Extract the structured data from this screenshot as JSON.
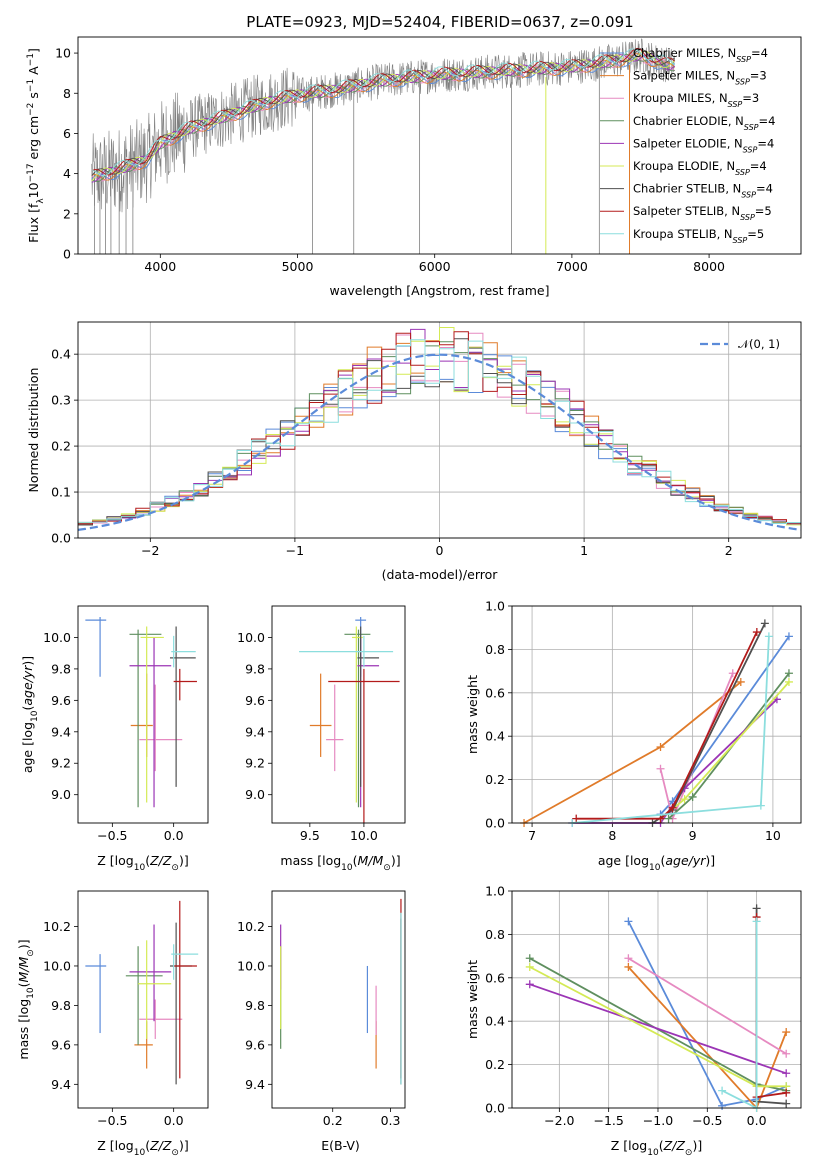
{
  "page_title": "PLATE=0923, MJD=52404, FIBERID=0637, z=0.091",
  "colors": {
    "Chabrier MILES": "#5b8bd9",
    "Salpeter MILES": "#e07b2a",
    "Kroupa MILES": "#e68ac1",
    "Chabrier ELODIE": "#5f8f5f",
    "Salpeter ELODIE": "#9b35b5",
    "Kroupa ELODIE": "#d4ea55",
    "Chabrier STELIB": "#505050",
    "Salpeter STELIB": "#b31b1b",
    "Kroupa STELIB": "#8cdede",
    "gaussian": "#5b8bd9",
    "data": "#808080"
  },
  "chart_data": [
    {
      "id": "spectrum",
      "type": "line",
      "title": "PLATE=0923, MJD=52404, FIBERID=0637, z=0.091",
      "xlabel": "wavelength [Angstrom, rest frame]",
      "ylabel": "Flux [f_λ 10^-17 erg cm^-2 s^-1 A^-1]",
      "xlim": [
        3400,
        8670
      ],
      "ylim": [
        0,
        10.8
      ],
      "xticks": [
        4000,
        5000,
        6000,
        7000,
        8000
      ],
      "yticks": [
        0,
        2,
        4,
        6,
        8,
        10
      ],
      "grid": false,
      "legend_position": "top-right",
      "continuum_points": [
        [
          3500,
          3.8
        ],
        [
          3700,
          4.2
        ],
        [
          3900,
          4.7
        ],
        [
          4000,
          5.5
        ],
        [
          4200,
          6.2
        ],
        [
          4500,
          6.9
        ],
        [
          4800,
          7.6
        ],
        [
          5000,
          7.9
        ],
        [
          5300,
          8.2
        ],
        [
          5600,
          8.6
        ],
        [
          6000,
          8.9
        ],
        [
          6500,
          9.1
        ],
        [
          7000,
          9.3
        ],
        [
          7300,
          9.6
        ],
        [
          7500,
          9.9
        ],
        [
          7700,
          9.4
        ]
      ],
      "series": [
        {
          "name": "Chabrier MILES",
          "nssp": 4
        },
        {
          "name": "Salpeter MILES",
          "nssp": 3
        },
        {
          "name": "Kroupa MILES",
          "nssp": 3
        },
        {
          "name": "Chabrier ELODIE",
          "nssp": 4
        },
        {
          "name": "Salpeter ELODIE",
          "nssp": 4
        },
        {
          "name": "Kroupa ELODIE",
          "nssp": 4
        },
        {
          "name": "Chabrier STELIB",
          "nssp": 4
        },
        {
          "name": "Salpeter STELIB",
          "nssp": 5
        },
        {
          "name": "Kroupa STELIB",
          "nssp": 5
        }
      ]
    },
    {
      "id": "residuals",
      "type": "bar",
      "xlabel": "(data-model)/error",
      "ylabel": "Normed distribution",
      "xlim": [
        -2.5,
        2.5
      ],
      "ylim": [
        0,
        0.47
      ],
      "xticks": [
        -2,
        -1,
        0,
        1,
        2
      ],
      "yticks": [
        0.0,
        0.1,
        0.2,
        0.3,
        0.4
      ],
      "grid": true,
      "legend_position": "top-right",
      "legend_entry": "𝒩(0, 1)",
      "bin_width": 0.1
    },
    {
      "id": "age-vs-Z",
      "type": "scatter",
      "xlabel": "Z [log10(Z/Z_sun)]",
      "ylabel": "age [log10(age/yr)]",
      "xlim": [
        -0.78,
        0.28
      ],
      "ylim": [
        8.82,
        10.2
      ],
      "xticks": [
        -0.5,
        0.0
      ],
      "yticks": [
        9.0,
        9.2,
        9.4,
        9.6,
        9.8,
        10.0
      ],
      "grid": false,
      "points": [
        {
          "model": "Chabrier MILES",
          "x": -0.6,
          "y": 10.11,
          "xerr": [
            0.12,
            0.05
          ],
          "yerr": [
            0.36,
            0.02
          ]
        },
        {
          "model": "Salpeter MILES",
          "x": -0.22,
          "y": 9.44,
          "xerr": [
            0.13,
            0.05
          ],
          "yerr": [
            0.2,
            0.33
          ]
        },
        {
          "model": "Kroupa MILES",
          "x": -0.15,
          "y": 9.35,
          "xerr": [
            0.13,
            0.22
          ],
          "yerr": [
            0.2,
            0.35
          ]
        },
        {
          "model": "Chabrier ELODIE",
          "x": -0.29,
          "y": 10.02,
          "xerr": [
            0.07,
            0.19
          ],
          "yerr": [
            1.1,
            0.03
          ]
        },
        {
          "model": "Salpeter ELODIE",
          "x": -0.16,
          "y": 9.82,
          "xerr": [
            0.2,
            0.14
          ],
          "yerr": [
            0.9,
            0.18
          ]
        },
        {
          "model": "Kroupa ELODIE",
          "x": -0.22,
          "y": 10.0,
          "xerr": [
            0.05,
            0.14
          ],
          "yerr": [
            1.05,
            0.07
          ]
        },
        {
          "model": "Chabrier STELIB",
          "x": 0.02,
          "y": 9.87,
          "xerr": [
            0.05,
            0.16
          ],
          "yerr": [
            0.82,
            0.2
          ]
        },
        {
          "model": "Salpeter STELIB",
          "x": 0.05,
          "y": 9.72,
          "xerr": [
            0.05,
            0.14
          ],
          "yerr": [
            0.12,
            0.08
          ]
        },
        {
          "model": "Kroupa STELIB",
          "x": 0.0,
          "y": 9.91,
          "xerr": [
            0.02,
            0.18
          ],
          "yerr": [
            0.1,
            0.1
          ]
        }
      ]
    },
    {
      "id": "age-vs-mass",
      "type": "scatter",
      "xlabel": "mass [log10(M/M_sun)]",
      "ylabel": "",
      "xlim": [
        9.15,
        10.38
      ],
      "ylim": [
        8.82,
        10.2
      ],
      "xticks": [
        9.5,
        10.0
      ],
      "yticks": [
        9.0,
        9.2,
        9.4,
        9.6,
        9.8,
        10.0
      ],
      "grid": false,
      "points": [
        {
          "model": "Chabrier MILES",
          "x": 9.97,
          "y": 10.11,
          "xerr": [
            0.05,
            0.05
          ],
          "yerr": [
            0.36,
            0.02
          ]
        },
        {
          "model": "Salpeter MILES",
          "x": 9.6,
          "y": 9.44,
          "xerr": [
            0.1,
            0.1
          ],
          "yerr": [
            0.2,
            0.33
          ]
        },
        {
          "model": "Kroupa MILES",
          "x": 9.73,
          "y": 9.35,
          "xerr": [
            0.08,
            0.08
          ],
          "yerr": [
            0.2,
            0.35
          ]
        },
        {
          "model": "Chabrier ELODIE",
          "x": 9.95,
          "y": 10.02,
          "xerr": [
            0.13,
            0.11
          ],
          "yerr": [
            1.1,
            0.03
          ]
        },
        {
          "model": "Salpeter ELODIE",
          "x": 9.97,
          "y": 9.82,
          "xerr": [
            0.03,
            0.17
          ],
          "yerr": [
            0.9,
            0.18
          ]
        },
        {
          "model": "Kroupa ELODIE",
          "x": 9.93,
          "y": 10.0,
          "xerr": [
            0.04,
            0.06
          ],
          "yerr": [
            1.05,
            0.07
          ]
        },
        {
          "model": "Chabrier STELIB",
          "x": 9.97,
          "y": 9.87,
          "xerr": [
            0.03,
            0.17
          ],
          "yerr": [
            0.82,
            0.2
          ]
        },
        {
          "model": "Salpeter STELIB",
          "x": 10.0,
          "y": 9.72,
          "xerr": [
            0.33,
            0.33
          ],
          "yerr": [
            0.9,
            0.08
          ]
        },
        {
          "model": "Kroupa STELIB",
          "x": 10.0,
          "y": 9.91,
          "xerr": [
            0.6,
            0.27
          ],
          "yerr": [
            0.1,
            0.1
          ]
        }
      ]
    },
    {
      "id": "mass-weight-vs-age",
      "type": "line",
      "xlabel": "age [log10(age/yr)]",
      "ylabel": "mass weight",
      "xlim": [
        6.75,
        10.35
      ],
      "ylim": [
        0,
        1.0
      ],
      "xticks": [
        7,
        8,
        9,
        10
      ],
      "yticks": [
        0.0,
        0.2,
        0.4,
        0.6,
        0.8,
        1.0
      ],
      "grid": true,
      "series": [
        {
          "name": "Chabrier MILES",
          "points": [
            [
              8.6,
              0.04
            ],
            [
              8.75,
              0.1
            ],
            [
              10.2,
              0.86
            ]
          ]
        },
        {
          "name": "Salpeter MILES",
          "points": [
            [
              6.9,
              0.0
            ],
            [
              8.6,
              0.35
            ],
            [
              9.6,
              0.65
            ]
          ]
        },
        {
          "name": "Kroupa MILES",
          "points": [
            [
              8.6,
              0.25
            ],
            [
              8.75,
              0.02
            ],
            [
              9.5,
              0.69
            ]
          ]
        },
        {
          "name": "Chabrier ELODIE",
          "points": [
            [
              8.7,
              0.02
            ],
            [
              9.0,
              0.12
            ],
            [
              10.2,
              0.69
            ]
          ]
        },
        {
          "name": "Salpeter ELODIE",
          "points": [
            [
              7.5,
              0.0
            ],
            [
              8.6,
              0.0
            ],
            [
              8.9,
              0.16
            ],
            [
              10.05,
              0.57
            ]
          ]
        },
        {
          "name": "Kroupa ELODIE",
          "points": [
            [
              8.6,
              0.02
            ],
            [
              8.9,
              0.11
            ],
            [
              10.2,
              0.65
            ]
          ]
        },
        {
          "name": "Chabrier STELIB",
          "points": [
            [
              8.5,
              0.0
            ],
            [
              8.75,
              0.06
            ],
            [
              9.9,
              0.92
            ]
          ]
        },
        {
          "name": "Salpeter STELIB",
          "points": [
            [
              7.55,
              0.02
            ],
            [
              8.6,
              0.02
            ],
            [
              8.75,
              0.07
            ],
            [
              9.8,
              0.88
            ]
          ]
        },
        {
          "name": "Kroupa STELIB",
          "points": [
            [
              7.5,
              0.0
            ],
            [
              9.85,
              0.08
            ],
            [
              9.95,
              0.86
            ]
          ]
        }
      ]
    },
    {
      "id": "mass-vs-Z",
      "type": "scatter",
      "xlabel": "Z [log10(Z/Z_sun)]",
      "ylabel": "mass [log10(M/M_sun)]",
      "xlim": [
        -0.78,
        0.28
      ],
      "ylim": [
        9.28,
        10.38
      ],
      "xticks": [
        -0.5,
        0.0
      ],
      "yticks": [
        9.4,
        9.6,
        9.8,
        10.0,
        10.2
      ],
      "grid": false,
      "points": [
        {
          "model": "Chabrier MILES",
          "x": -0.6,
          "y": 10.0,
          "xerr": [
            0.12,
            0.05
          ],
          "yerr": [
            0.34,
            0.06
          ]
        },
        {
          "model": "Salpeter MILES",
          "x": -0.22,
          "y": 9.6,
          "xerr": [
            0.1,
            0.05
          ],
          "yerr": [
            0.12,
            0.12
          ]
        },
        {
          "model": "Kroupa MILES",
          "x": -0.15,
          "y": 9.73,
          "xerr": [
            0.13,
            0.22
          ],
          "yerr": [
            0.1,
            0.1
          ]
        },
        {
          "model": "Chabrier ELODIE",
          "x": -0.29,
          "y": 9.95,
          "xerr": [
            0.1,
            0.2
          ],
          "yerr": [
            0.35,
            0.15
          ]
        },
        {
          "model": "Salpeter ELODIE",
          "x": -0.16,
          "y": 9.97,
          "xerr": [
            0.2,
            0.14
          ],
          "yerr": [
            0.25,
            0.24
          ]
        },
        {
          "model": "Kroupa ELODIE",
          "x": -0.22,
          "y": 9.91,
          "xerr": [
            0.07,
            0.2
          ],
          "yerr": [
            0.28,
            0.22
          ]
        },
        {
          "model": "Chabrier STELIB",
          "x": 0.02,
          "y": 10.0,
          "xerr": [
            0.05,
            0.13
          ],
          "yerr": [
            0.6,
            0.22
          ]
        },
        {
          "model": "Salpeter STELIB",
          "x": 0.05,
          "y": 10.0,
          "xerr": [
            0.05,
            0.14
          ],
          "yerr": [
            0.57,
            0.33
          ]
        },
        {
          "model": "Kroupa STELIB",
          "x": 0.0,
          "y": 10.06,
          "xerr": [
            0.02,
            0.2
          ],
          "yerr": [
            0.13,
            0.05
          ]
        }
      ]
    },
    {
      "id": "mass-vs-ebv",
      "type": "scatter",
      "xlabel": "E(B-V)",
      "ylabel": "",
      "xlim": [
        0.095,
        0.325
      ],
      "ylim": [
        9.28,
        10.38
      ],
      "xticks": [
        0.2,
        0.3
      ],
      "yticks": [
        9.4,
        9.6,
        9.8,
        10.0,
        10.2
      ],
      "grid": false,
      "points": [
        {
          "model": "Chabrier MILES",
          "x": 0.26,
          "y": 9.84,
          "xerr": [
            0,
            0
          ],
          "yerr": [
            0.18,
            0.16
          ]
        },
        {
          "model": "Salpeter MILES",
          "x": 0.275,
          "y": 9.6,
          "xerr": [
            0,
            0
          ],
          "yerr": [
            0.12,
            0.12
          ]
        },
        {
          "model": "Kroupa MILES",
          "x": 0.275,
          "y": 9.75,
          "xerr": [
            0,
            0
          ],
          "yerr": [
            0.1,
            0.15
          ]
        },
        {
          "model": "Chabrier ELODIE",
          "x": 0.11,
          "y": 9.6,
          "xerr": [
            0,
            0
          ],
          "yerr": [
            0.02,
            0.5
          ]
        },
        {
          "model": "Salpeter ELODIE",
          "x": 0.11,
          "y": 10.0,
          "xerr": [
            0,
            0
          ],
          "yerr": [
            0.12,
            0.21
          ]
        },
        {
          "model": "Kroupa ELODIE",
          "x": 0.11,
          "y": 9.9,
          "xerr": [
            0,
            0
          ],
          "yerr": [
            0.22,
            0.2
          ]
        },
        {
          "model": "Chabrier STELIB",
          "x": 0.318,
          "y": 10.02,
          "xerr": [
            0,
            0
          ],
          "yerr": [
            0.62,
            0.22
          ]
        },
        {
          "model": "Salpeter STELIB",
          "x": 0.318,
          "y": 10.0,
          "xerr": [
            0,
            0
          ],
          "yerr": [
            0.57,
            0.34
          ]
        },
        {
          "model": "Kroupa STELIB",
          "x": 0.318,
          "y": 10.0,
          "xerr": [
            0,
            0
          ],
          "yerr": [
            0.6,
            0.27
          ]
        }
      ]
    },
    {
      "id": "mass-weight-vs-Z",
      "type": "line",
      "xlabel": "Z [log10(Z/Z_sun)]",
      "ylabel": "mass weight",
      "xlim": [
        -2.48,
        0.45
      ],
      "ylim": [
        0,
        1.0
      ],
      "xticks": [
        -2.0,
        -1.5,
        -1.0,
        -0.5,
        0.0
      ],
      "yticks": [
        0.0,
        0.2,
        0.4,
        0.6,
        0.8,
        1.0
      ],
      "grid": true,
      "series": [
        {
          "name": "Chabrier MILES",
          "points": [
            [
              -1.3,
              0.86
            ],
            [
              -0.35,
              0.01
            ],
            [
              0.0,
              0.04
            ],
            [
              0.3,
              0.1
            ]
          ]
        },
        {
          "name": "Salpeter MILES",
          "points": [
            [
              -1.3,
              0.65
            ],
            [
              0.0,
              0.0
            ],
            [
              0.3,
              0.35
            ]
          ]
        },
        {
          "name": "Kroupa MILES",
          "points": [
            [
              -1.3,
              0.69
            ],
            [
              0.3,
              0.25
            ]
          ]
        },
        {
          "name": "Chabrier ELODIE",
          "points": [
            [
              -2.3,
              0.69
            ],
            [
              0.0,
              0.11
            ],
            [
              0.3,
              0.08
            ]
          ]
        },
        {
          "name": "Salpeter ELODIE",
          "points": [
            [
              -2.3,
              0.57
            ],
            [
              0.3,
              0.16
            ]
          ]
        },
        {
          "name": "Kroupa ELODIE",
          "points": [
            [
              -2.3,
              0.65
            ],
            [
              0.0,
              0.1
            ],
            [
              0.3,
              0.1
            ]
          ]
        },
        {
          "name": "Chabrier STELIB",
          "points": [
            [
              0.0,
              0.92
            ],
            [
              0.0,
              0.03
            ],
            [
              0.3,
              0.02
            ]
          ]
        },
        {
          "name": "Salpeter STELIB",
          "points": [
            [
              0.0,
              0.88
            ],
            [
              0.0,
              0.05
            ],
            [
              0.3,
              0.07
            ]
          ]
        },
        {
          "name": "Kroupa STELIB",
          "points": [
            [
              0.0,
              0.86
            ],
            [
              0.0,
              0.0
            ],
            [
              -0.35,
              0.08
            ]
          ]
        }
      ]
    }
  ]
}
